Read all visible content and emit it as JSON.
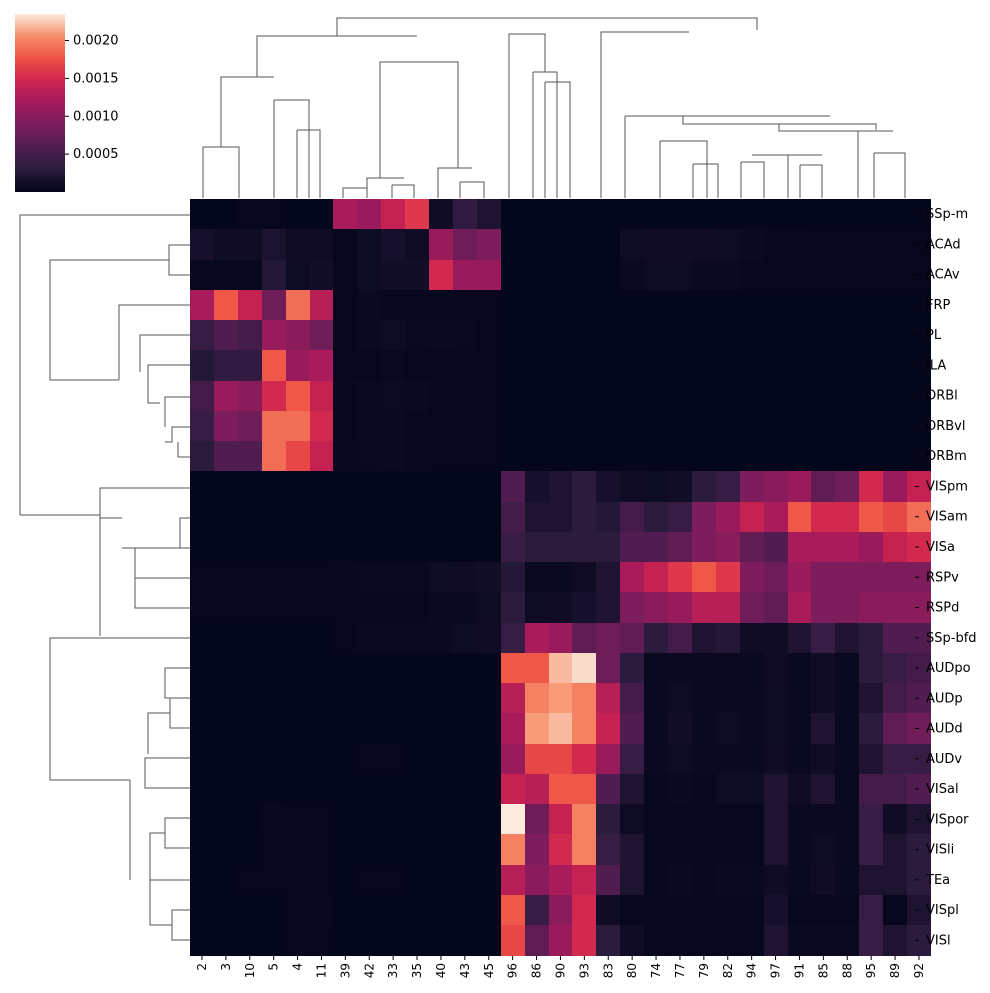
{
  "chart_data": {
    "type": "heatmap",
    "title": "",
    "xlabel": "",
    "ylabel": "",
    "cluster_dendrograms": "rows-left, columns-top",
    "colormap": "rocket",
    "colorbar": {
      "position": "top-left",
      "vmin": 0.0,
      "vmax": 0.00235,
      "ticks": [
        0.0005,
        0.001,
        0.0015,
        0.002
      ],
      "tick_labels": [
        "0.0005",
        "0.0010",
        "0.0015",
        "0.0020"
      ]
    },
    "columns": [
      "2",
      "3",
      "10",
      "5",
      "4",
      "11",
      "39",
      "42",
      "33",
      "35",
      "40",
      "43",
      "45",
      "96",
      "86",
      "90",
      "93",
      "83",
      "80",
      "74",
      "77",
      "79",
      "82",
      "94",
      "97",
      "91",
      "85",
      "88",
      "95",
      "89",
      "92"
    ],
    "rows": [
      "SSp-m",
      "ACAd",
      "ACAv",
      "FRP",
      "PL",
      "ILA",
      "ORBl",
      "ORBvl",
      "ORBm",
      "VISpm",
      "VISam",
      "VISa",
      "RSPv",
      "RSPd",
      "SSp-bfd",
      "AUDpo",
      "AUDp",
      "AUDd",
      "AUDv",
      "VISal",
      "VISpor",
      "VISli",
      "TEa",
      "VISpl",
      "VISl"
    ],
    "values": [
      [
        1e-05,
        1e-05,
        3e-05,
        2e-05,
        1e-05,
        1e-05,
        0.0012,
        0.0011,
        0.0014,
        0.0016,
        0.0001,
        0.00035,
        0.0002,
        1e-05,
        1e-05,
        1e-05,
        1e-05,
        1e-05,
        1e-05,
        1e-05,
        1e-05,
        1e-05,
        1e-05,
        1e-05,
        1e-05,
        1e-05,
        1e-05,
        1e-05,
        1e-05,
        1e-05,
        1e-05
      ],
      [
        0.00015,
        0.0001,
        0.0001,
        0.00018,
        0.0001,
        0.0001,
        2e-05,
        8e-05,
        0.00015,
        0.0001,
        0.0011,
        0.0008,
        0.0009,
        1e-05,
        1e-05,
        1e-05,
        1e-05,
        1e-05,
        8e-05,
        0.0001,
        0.0001,
        0.0001,
        8e-05,
        5e-05,
        3e-05,
        3e-05,
        2e-05,
        2e-05,
        2e-05,
        2e-05,
        2e-05
      ],
      [
        3e-05,
        3e-05,
        3e-05,
        0.00025,
        8e-05,
        0.00012,
        3e-05,
        8e-05,
        0.00012,
        0.00012,
        0.0015,
        0.0011,
        0.0011,
        1e-05,
        1e-05,
        1e-05,
        1e-05,
        1e-05,
        5e-05,
        8e-05,
        8e-05,
        6e-05,
        5e-05,
        3e-05,
        2e-05,
        2e-05,
        2e-05,
        2e-05,
        2e-05,
        2e-05,
        2e-05
      ],
      [
        0.0012,
        0.0018,
        0.0014,
        0.0008,
        0.0019,
        0.0013,
        2e-05,
        5e-05,
        3e-05,
        3e-05,
        2e-05,
        2e-05,
        2e-05,
        1e-05,
        1e-05,
        1e-05,
        1e-05,
        1e-05,
        1e-05,
        1e-05,
        1e-05,
        1e-05,
        1e-05,
        1e-05,
        1e-05,
        1e-05,
        1e-05,
        1e-05,
        1e-05,
        1e-05,
        1e-05
      ],
      [
        0.0004,
        0.0006,
        0.0005,
        0.0011,
        0.001,
        0.0008,
        2e-05,
        5e-05,
        8e-05,
        4e-05,
        6e-05,
        4e-05,
        2e-05,
        1e-05,
        1e-05,
        1e-05,
        1e-05,
        1e-05,
        1e-05,
        1e-05,
        1e-05,
        1e-05,
        1e-05,
        1e-05,
        1e-05,
        1e-05,
        1e-05,
        1e-05,
        1e-05,
        1e-05,
        1e-05
      ],
      [
        0.00025,
        0.00035,
        0.00035,
        0.0018,
        0.0011,
        0.0012,
        2e-05,
        2e-05,
        4e-05,
        2e-05,
        2e-05,
        2e-05,
        2e-05,
        1e-05,
        1e-05,
        1e-05,
        1e-05,
        1e-05,
        1e-05,
        1e-05,
        1e-05,
        1e-05,
        1e-05,
        1e-05,
        1e-05,
        1e-05,
        1e-05,
        1e-05,
        1e-05,
        1e-05,
        1e-05
      ],
      [
        0.0005,
        0.0011,
        0.001,
        0.0015,
        0.0018,
        0.0014,
        3e-05,
        5e-05,
        7e-05,
        5e-05,
        2e-05,
        2e-05,
        2e-05,
        1e-05,
        1e-05,
        1e-05,
        1e-05,
        1e-05,
        1e-05,
        1e-05,
        1e-05,
        1e-05,
        1e-05,
        1e-05,
        1e-05,
        1e-05,
        1e-05,
        1e-05,
        1e-05,
        1e-05,
        1e-05
      ],
      [
        0.0004,
        0.0009,
        0.0008,
        0.0019,
        0.0019,
        0.0015,
        3e-05,
        5e-05,
        6e-05,
        3e-05,
        2e-05,
        2e-05,
        2e-05,
        1e-05,
        1e-05,
        1e-05,
        1e-05,
        1e-05,
        1e-05,
        1e-05,
        1e-05,
        1e-05,
        1e-05,
        1e-05,
        1e-05,
        1e-05,
        1e-05,
        1e-05,
        1e-05,
        1e-05,
        1e-05
      ],
      [
        0.0003,
        0.0006,
        0.0006,
        0.0019,
        0.0017,
        0.0014,
        3e-05,
        4e-05,
        6e-05,
        3e-05,
        2e-05,
        2e-05,
        2e-05,
        1e-05,
        1e-05,
        1e-05,
        1e-05,
        1e-05,
        1e-05,
        1e-05,
        1e-05,
        1e-05,
        1e-05,
        1e-05,
        1e-05,
        1e-05,
        1e-05,
        1e-05,
        1e-05,
        1e-05,
        1e-05
      ],
      [
        1e-05,
        1e-05,
        1e-05,
        1e-05,
        1e-05,
        1e-05,
        1e-05,
        1e-05,
        1e-05,
        1e-05,
        1e-05,
        1e-05,
        1e-05,
        0.0006,
        0.00015,
        0.0002,
        0.0003,
        0.00015,
        0.0001,
        8e-05,
        0.00012,
        0.0003,
        0.0004,
        0.0009,
        0.001,
        0.0011,
        0.0007,
        0.0008,
        0.0015,
        0.0011,
        0.0014
      ],
      [
        1e-05,
        1e-05,
        1e-05,
        1e-05,
        1e-05,
        1e-05,
        1e-05,
        1e-05,
        1e-05,
        1e-05,
        1e-05,
        1e-05,
        1e-05,
        0.0005,
        0.0002,
        0.0002,
        0.0003,
        0.00025,
        0.0005,
        0.0003,
        0.0004,
        0.0009,
        0.0011,
        0.0014,
        0.0012,
        0.0018,
        0.0015,
        0.0015,
        0.0018,
        0.0017,
        0.0019
      ],
      [
        1e-05,
        1e-05,
        1e-05,
        1e-05,
        1e-05,
        1e-05,
        1e-05,
        1e-05,
        1e-05,
        1e-05,
        1e-05,
        1e-05,
        1e-05,
        0.0004,
        0.0003,
        0.0003,
        0.0003,
        0.0003,
        0.0006,
        0.0006,
        0.0007,
        0.0009,
        0.001,
        0.0007,
        0.0006,
        0.0012,
        0.0012,
        0.0012,
        0.0011,
        0.0014,
        0.0015
      ],
      [
        2e-05,
        2e-05,
        2e-05,
        2e-05,
        2e-05,
        2e-05,
        3e-05,
        4e-05,
        4e-05,
        4e-05,
        8e-05,
        0.0001,
        0.00012,
        0.00025,
        5e-05,
        5e-05,
        0.0001,
        0.0002,
        0.0012,
        0.0014,
        0.0016,
        0.0018,
        0.0016,
        0.0009,
        0.0008,
        0.0011,
        0.0009,
        0.0009,
        0.0009,
        0.0009,
        0.0009
      ],
      [
        2e-05,
        2e-05,
        2e-05,
        2e-05,
        2e-05,
        2e-05,
        2e-05,
        3e-05,
        3e-05,
        3e-05,
        5e-05,
        6e-05,
        8e-05,
        0.0003,
        8e-05,
        0.0001,
        0.00015,
        0.0002,
        0.0009,
        0.001,
        0.0011,
        0.0013,
        0.0013,
        0.0008,
        0.0007,
        0.0012,
        0.0009,
        0.0009,
        0.001,
        0.001,
        0.001
      ],
      [
        1e-05,
        1e-05,
        1e-05,
        1e-05,
        1e-05,
        1e-05,
        2e-05,
        4e-05,
        5e-05,
        4e-05,
        5e-05,
        8e-05,
        0.0001,
        0.0004,
        0.0012,
        0.0011,
        0.0007,
        0.0008,
        0.0007,
        0.0003,
        0.0005,
        0.0002,
        0.00025,
        0.0001,
        0.0001,
        0.0002,
        0.0004,
        0.0002,
        0.0003,
        0.0006,
        0.0006
      ],
      [
        1e-05,
        1e-05,
        1e-05,
        1e-05,
        1e-05,
        1e-05,
        1e-05,
        1e-05,
        1e-05,
        1e-05,
        1e-05,
        1e-05,
        1e-05,
        0.0018,
        0.0018,
        0.0022,
        0.0023,
        0.0008,
        0.0003,
        5e-05,
        5e-05,
        5e-05,
        5e-05,
        5e-05,
        0.0001,
        5e-05,
        0.0001,
        5e-05,
        0.0003,
        0.0004,
        0.0005
      ],
      [
        1e-05,
        1e-05,
        1e-05,
        1e-05,
        1e-05,
        1e-05,
        1e-05,
        1e-05,
        1e-05,
        1e-05,
        1e-05,
        1e-05,
        1e-05,
        0.0013,
        0.002,
        0.0021,
        0.002,
        0.0013,
        0.0005,
        5e-05,
        8e-05,
        5e-05,
        5e-05,
        5e-05,
        8e-05,
        5e-05,
        0.0001,
        5e-05,
        0.0002,
        0.0005,
        0.0006
      ],
      [
        1e-05,
        1e-05,
        1e-05,
        1e-05,
        1e-05,
        1e-05,
        1e-05,
        1e-05,
        1e-05,
        1e-05,
        1e-05,
        1e-05,
        1e-05,
        0.0012,
        0.0021,
        0.0022,
        0.002,
        0.0014,
        0.0006,
        5e-05,
        0.00012,
        5e-05,
        8e-05,
        5e-05,
        8e-05,
        5e-05,
        0.0002,
        5e-05,
        0.0003,
        0.0007,
        0.0008
      ],
      [
        1e-05,
        1e-05,
        1e-05,
        1e-05,
        1e-05,
        1e-05,
        1e-05,
        2e-05,
        2e-05,
        1e-05,
        1e-05,
        1e-05,
        1e-05,
        0.0011,
        0.0017,
        0.0017,
        0.0015,
        0.0011,
        0.0004,
        5e-05,
        8e-05,
        5e-05,
        5e-05,
        5e-05,
        0.0001,
        5e-05,
        0.0001,
        5e-05,
        0.0002,
        0.0004,
        0.0004
      ],
      [
        1e-05,
        1e-05,
        1e-05,
        1e-05,
        1e-05,
        1e-05,
        1e-05,
        1e-05,
        1e-05,
        1e-05,
        1e-05,
        1e-05,
        1e-05,
        0.0014,
        0.0013,
        0.0018,
        0.0018,
        0.0006,
        0.0002,
        3e-05,
        5e-05,
        3e-05,
        8e-05,
        8e-05,
        0.0002,
        0.0001,
        0.0002,
        5e-05,
        0.0005,
        0.0005,
        0.0006
      ],
      [
        1e-05,
        1e-05,
        1e-05,
        3e-05,
        2e-05,
        2e-05,
        1e-05,
        1e-05,
        1e-05,
        1e-05,
        1e-05,
        1e-05,
        1e-05,
        0.00235,
        0.0008,
        0.0014,
        0.002,
        0.0003,
        8e-05,
        3e-05,
        3e-05,
        3e-05,
        3e-05,
        3e-05,
        0.0002,
        5e-05,
        5e-05,
        5e-05,
        0.0004,
        0.0001,
        0.0002
      ],
      [
        1e-05,
        1e-05,
        1e-05,
        2e-05,
        2e-05,
        2e-05,
        1e-05,
        1e-05,
        1e-05,
        1e-05,
        1e-05,
        1e-05,
        1e-05,
        0.002,
        0.0009,
        0.0015,
        0.002,
        0.0004,
        0.0002,
        3e-05,
        3e-05,
        3e-05,
        3e-05,
        3e-05,
        0.0002,
        5e-05,
        8e-05,
        5e-05,
        0.0004,
        0.0002,
        0.0003
      ],
      [
        1e-05,
        1e-05,
        2e-05,
        2e-05,
        2e-05,
        2e-05,
        1e-05,
        2e-05,
        2e-05,
        1e-05,
        1e-05,
        1e-05,
        1e-05,
        0.0013,
        0.001,
        0.0012,
        0.0014,
        0.0006,
        0.0002,
        3e-05,
        5e-05,
        3e-05,
        5e-05,
        5e-05,
        0.0001,
        5e-05,
        0.0001,
        5e-05,
        0.0002,
        0.0002,
        0.0003
      ],
      [
        1e-05,
        1e-05,
        1e-05,
        1e-05,
        2e-05,
        3e-05,
        1e-05,
        1e-05,
        1e-05,
        1e-05,
        1e-05,
        1e-05,
        1e-05,
        0.0018,
        0.0004,
        0.001,
        0.0015,
        0.0001,
        3e-05,
        3e-05,
        3e-05,
        3e-05,
        3e-05,
        3e-05,
        0.00015,
        3e-05,
        3e-05,
        3e-05,
        0.0004,
        3e-05,
        0.0002
      ],
      [
        1e-05,
        1e-05,
        1e-05,
        1e-05,
        2e-05,
        2e-05,
        1e-05,
        1e-05,
        1e-05,
        1e-05,
        1e-05,
        1e-05,
        1e-05,
        0.0017,
        0.0007,
        0.0011,
        0.0015,
        0.0003,
        0.0001,
        3e-05,
        3e-05,
        3e-05,
        3e-05,
        3e-05,
        0.0002,
        5e-05,
        5e-05,
        5e-05,
        0.0004,
        0.0002,
        0.0003
      ]
    ]
  }
}
